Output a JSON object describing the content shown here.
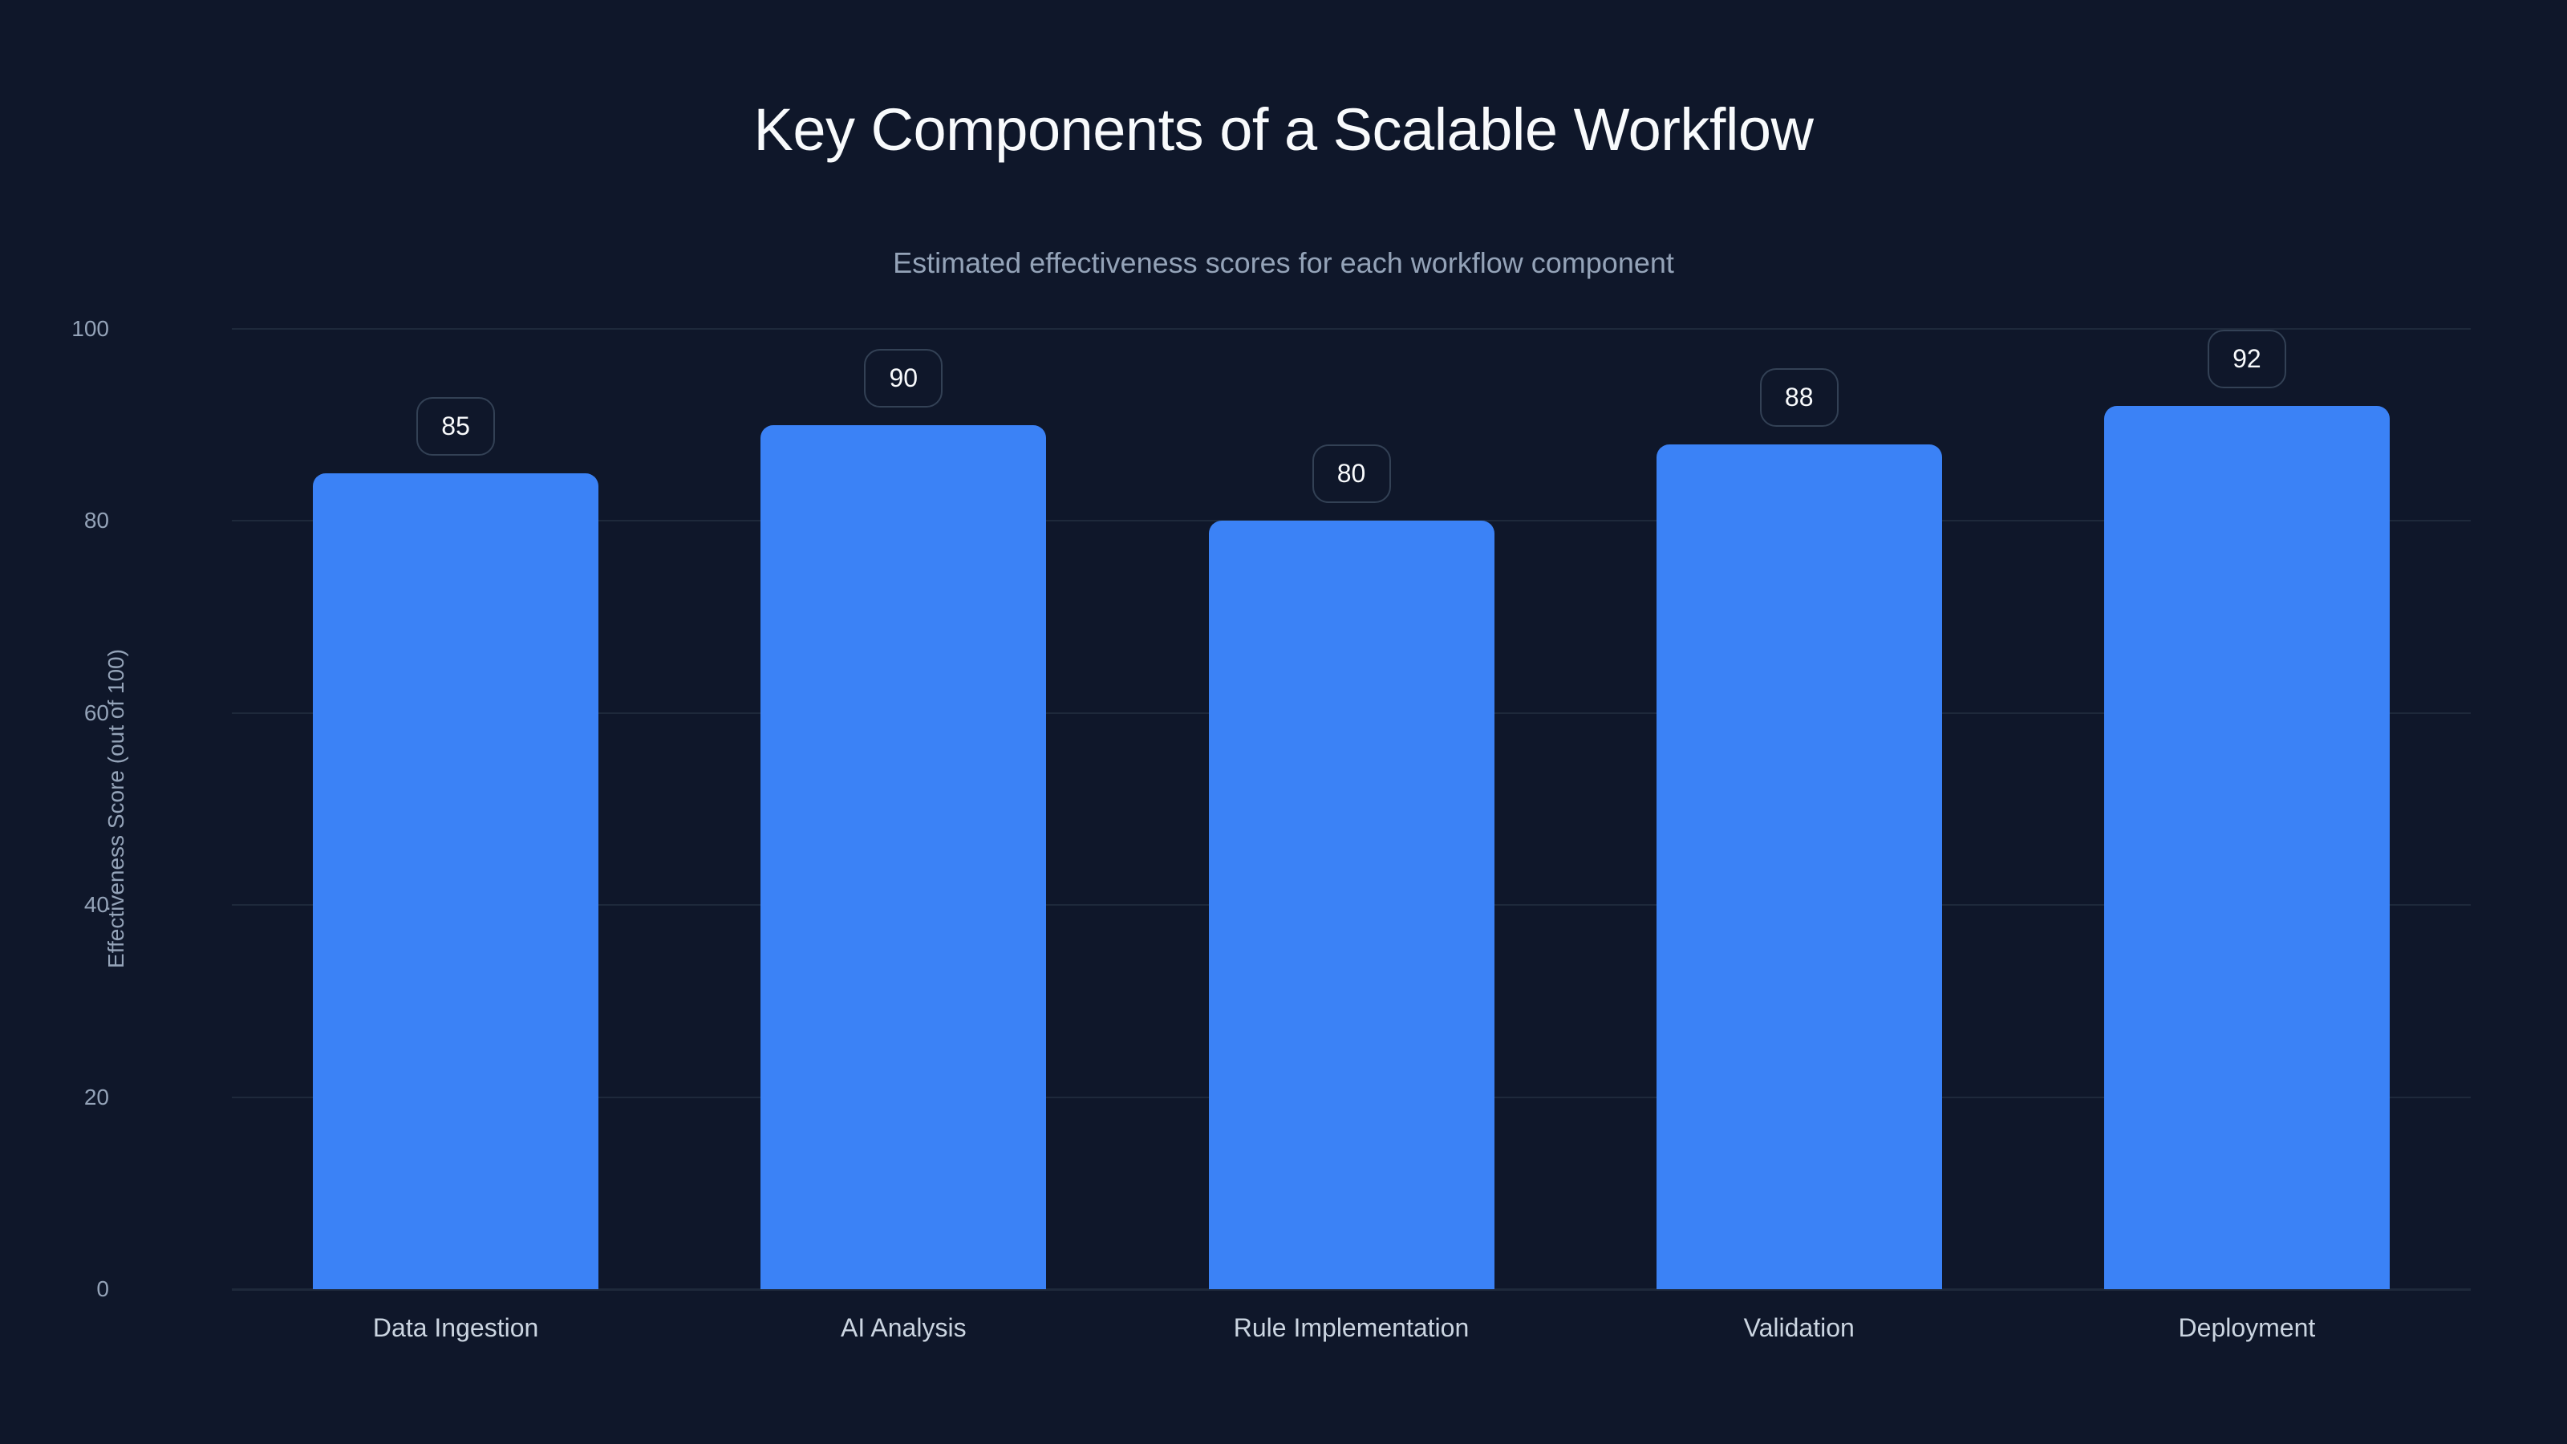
{
  "header": {
    "title": "Key Components of a Scalable Workflow",
    "subtitle": "Estimated effectiveness scores for each workflow component"
  },
  "axes": {
    "y_title": "Effectiveness Score (out of 100)",
    "y_ticks": [
      "0",
      "20",
      "40",
      "60",
      "80",
      "100"
    ]
  },
  "colors": {
    "background": "#0f172a",
    "bar": "#3b82f6",
    "grid": "#1e293b",
    "badge_border": "#334155",
    "title": "#f8fafc",
    "muted_text": "#94a3b8",
    "axis_label_text": "#cbd5e1"
  },
  "bars": [
    {
      "label": "Data Ingestion",
      "value": 85,
      "value_label": "85"
    },
    {
      "label": "AI Analysis",
      "value": 90,
      "value_label": "90"
    },
    {
      "label": "Rule Implementation",
      "value": 80,
      "value_label": "80"
    },
    {
      "label": "Validation",
      "value": 88,
      "value_label": "88"
    },
    {
      "label": "Deployment",
      "value": 92,
      "value_label": "92"
    }
  ],
  "chart_data": {
    "type": "bar",
    "title": "Key Components of a Scalable Workflow",
    "subtitle": "Estimated effectiveness scores for each workflow component",
    "categories": [
      "Data Ingestion",
      "AI Analysis",
      "Rule Implementation",
      "Validation",
      "Deployment"
    ],
    "values": [
      85,
      90,
      80,
      88,
      92
    ],
    "xlabel": "",
    "ylabel": "Effectiveness Score (out of 100)",
    "ylim": [
      0,
      100
    ],
    "yticks": [
      0,
      20,
      40,
      60,
      80,
      100
    ],
    "grid": true,
    "legend": null,
    "data_labels": true
  }
}
